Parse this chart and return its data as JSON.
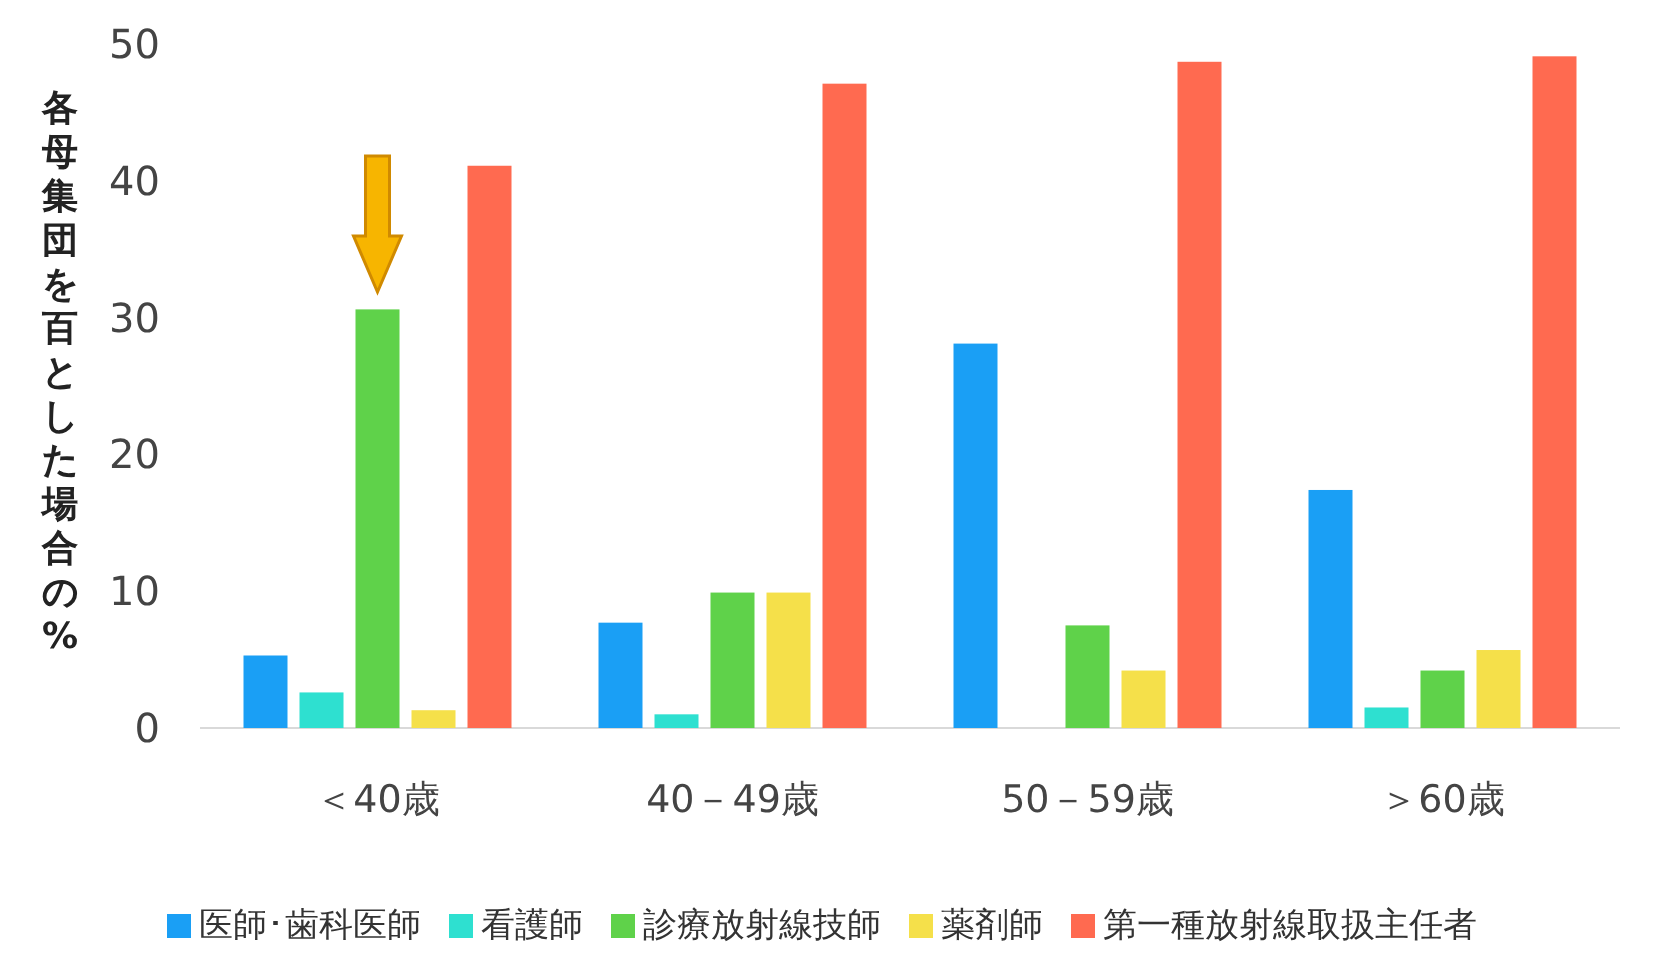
{
  "chart_data": {
    "type": "bar",
    "ylabel": "各母集団を百とした場合の%",
    "categories": [
      "＜40歳",
      "40－49歳",
      "50－59歳",
      "＞60歳"
    ],
    "series": [
      {
        "name": "医師･歯科医師",
        "color": "#1a9ff5",
        "values": [
          5.3,
          7.7,
          28.1,
          17.4
        ]
      },
      {
        "name": "看護師",
        "color": "#2ee0d0",
        "values": [
          2.6,
          1.0,
          null,
          1.5
        ]
      },
      {
        "name": "診療放射線技師",
        "color": "#5fd24a",
        "values": [
          30.6,
          9.9,
          7.5,
          4.2
        ]
      },
      {
        "name": "薬剤師",
        "color": "#f5e04a",
        "values": [
          1.3,
          9.9,
          4.2,
          5.7
        ]
      },
      {
        "name": "第一種放射線取扱主任者",
        "color": "#ff6a50",
        "values": [
          41.1,
          47.1,
          48.7,
          49.1
        ]
      }
    ],
    "ylim": [
      0,
      50
    ],
    "yticks": [
      0,
      10,
      20,
      30,
      40,
      50
    ],
    "grid": false,
    "legend": "bottom"
  }
}
